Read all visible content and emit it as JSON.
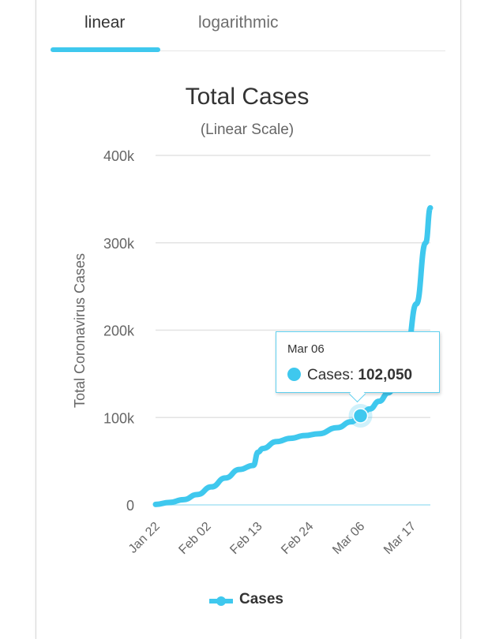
{
  "tabs": [
    {
      "label": "linear",
      "selected": true
    },
    {
      "label": "logarithmic",
      "selected": false
    }
  ],
  "accent_color": "#3fc8ee",
  "chart_data": {
    "type": "line",
    "title": "Total Cases",
    "subtitle": "(Linear Scale)",
    "ylabel": "Total Coronavirus Cases",
    "xlabel": "",
    "ylim": [
      0,
      400000
    ],
    "yticks": [
      0,
      100000,
      200000,
      300000,
      400000
    ],
    "ytick_labels": [
      "0",
      "100k",
      "200k",
      "300k",
      "400k"
    ],
    "xtick_labels": [
      "Jan 22",
      "Feb 02",
      "Feb 13",
      "Feb 24",
      "Mar 06",
      "Mar 17"
    ],
    "grid": true,
    "legend_position": "bottom",
    "series": [
      {
        "name": "Cases",
        "color": "#3fc8ee",
        "x": [
          "Jan 22",
          "Jan 25",
          "Jan 28",
          "Jan 31",
          "Feb 03",
          "Feb 06",
          "Feb 09",
          "Feb 12",
          "Feb 13",
          "Feb 14",
          "Feb 17",
          "Feb 20",
          "Feb 23",
          "Feb 26",
          "Mar 01",
          "Mar 04",
          "Mar 06",
          "Mar 08",
          "Mar 10",
          "Mar 12",
          "Mar 14",
          "Mar 16",
          "Mar 18",
          "Mar 20",
          "Mar 21"
        ],
        "values": [
          580,
          2800,
          6000,
          11900,
          20600,
          30800,
          40500,
          45200,
          60300,
          64500,
          72500,
          76200,
          79300,
          81400,
          88400,
          95100,
          102050,
          109800,
          118600,
          128300,
          145200,
          180000,
          230000,
          300000,
          340000
        ]
      }
    ]
  },
  "tooltip": {
    "date": "Mar 06",
    "series_label": "Cases:",
    "value": "102,050"
  },
  "legend": {
    "label": "Cases"
  }
}
